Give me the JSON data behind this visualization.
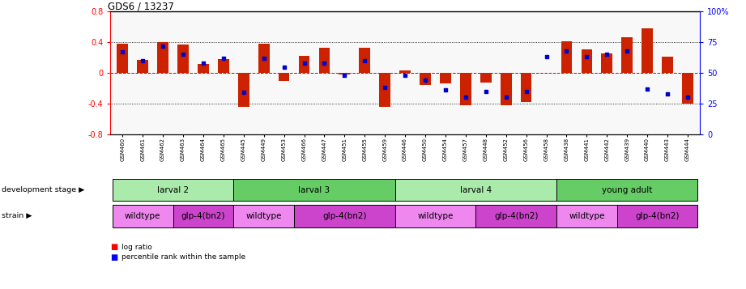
{
  "title": "GDS6 / 13237",
  "samples": [
    "GSM460",
    "GSM461",
    "GSM462",
    "GSM463",
    "GSM464",
    "GSM465",
    "GSM445",
    "GSM449",
    "GSM453",
    "GSM466",
    "GSM447",
    "GSM451",
    "GSM455",
    "GSM459",
    "GSM446",
    "GSM450",
    "GSM454",
    "GSM457",
    "GSM448",
    "GSM452",
    "GSM456",
    "GSM458",
    "GSM438",
    "GSM441",
    "GSM442",
    "GSM439",
    "GSM440",
    "GSM443",
    "GSM444"
  ],
  "log_ratio": [
    0.38,
    0.17,
    0.4,
    0.37,
    0.12,
    0.18,
    -0.44,
    0.38,
    -0.1,
    0.22,
    0.33,
    -0.02,
    0.33,
    -0.44,
    0.03,
    -0.16,
    -0.14,
    -0.42,
    -0.13,
    -0.42,
    -0.38,
    0.0,
    0.41,
    0.31,
    0.25,
    0.47,
    0.58,
    0.21,
    -0.4
  ],
  "percentile": [
    0.67,
    0.6,
    0.72,
    0.65,
    0.58,
    0.62,
    0.34,
    0.62,
    0.55,
    0.58,
    0.58,
    0.48,
    0.6,
    0.38,
    0.48,
    0.44,
    0.36,
    0.3,
    0.35,
    0.3,
    0.35,
    0.63,
    0.68,
    0.63,
    0.65,
    0.68,
    0.37,
    0.33,
    0.3
  ],
  "dev_stages": [
    {
      "label": "larval 2",
      "start": 0,
      "end": 6,
      "color": "#aaeaaa"
    },
    {
      "label": "larval 3",
      "start": 6,
      "end": 14,
      "color": "#66cc66"
    },
    {
      "label": "larval 4",
      "start": 14,
      "end": 22,
      "color": "#aaeaaa"
    },
    {
      "label": "young adult",
      "start": 22,
      "end": 29,
      "color": "#66cc66"
    }
  ],
  "strains": [
    {
      "label": "wildtype",
      "start": 0,
      "end": 3,
      "color": "#ee88ee"
    },
    {
      "label": "glp-4(bn2)",
      "start": 3,
      "end": 6,
      "color": "#cc44cc"
    },
    {
      "label": "wildtype",
      "start": 6,
      "end": 9,
      "color": "#ee88ee"
    },
    {
      "label": "glp-4(bn2)",
      "start": 9,
      "end": 14,
      "color": "#cc44cc"
    },
    {
      "label": "wildtype",
      "start": 14,
      "end": 18,
      "color": "#ee88ee"
    },
    {
      "label": "glp-4(bn2)",
      "start": 18,
      "end": 22,
      "color": "#cc44cc"
    },
    {
      "label": "wildtype",
      "start": 22,
      "end": 25,
      "color": "#ee88ee"
    },
    {
      "label": "glp-4(bn2)",
      "start": 25,
      "end": 29,
      "color": "#cc44cc"
    }
  ],
  "ylim": [
    -0.8,
    0.8
  ],
  "yticks_left": [
    -0.8,
    -0.4,
    0.0,
    0.4,
    0.8
  ],
  "yticks_right": [
    0,
    25,
    50,
    75,
    100
  ],
  "bar_color": "#cc2200",
  "dot_color": "#0000cc",
  "zero_line_color": "#cc0000",
  "grid_color": "#000000",
  "bg_color": "#f0f0f0"
}
